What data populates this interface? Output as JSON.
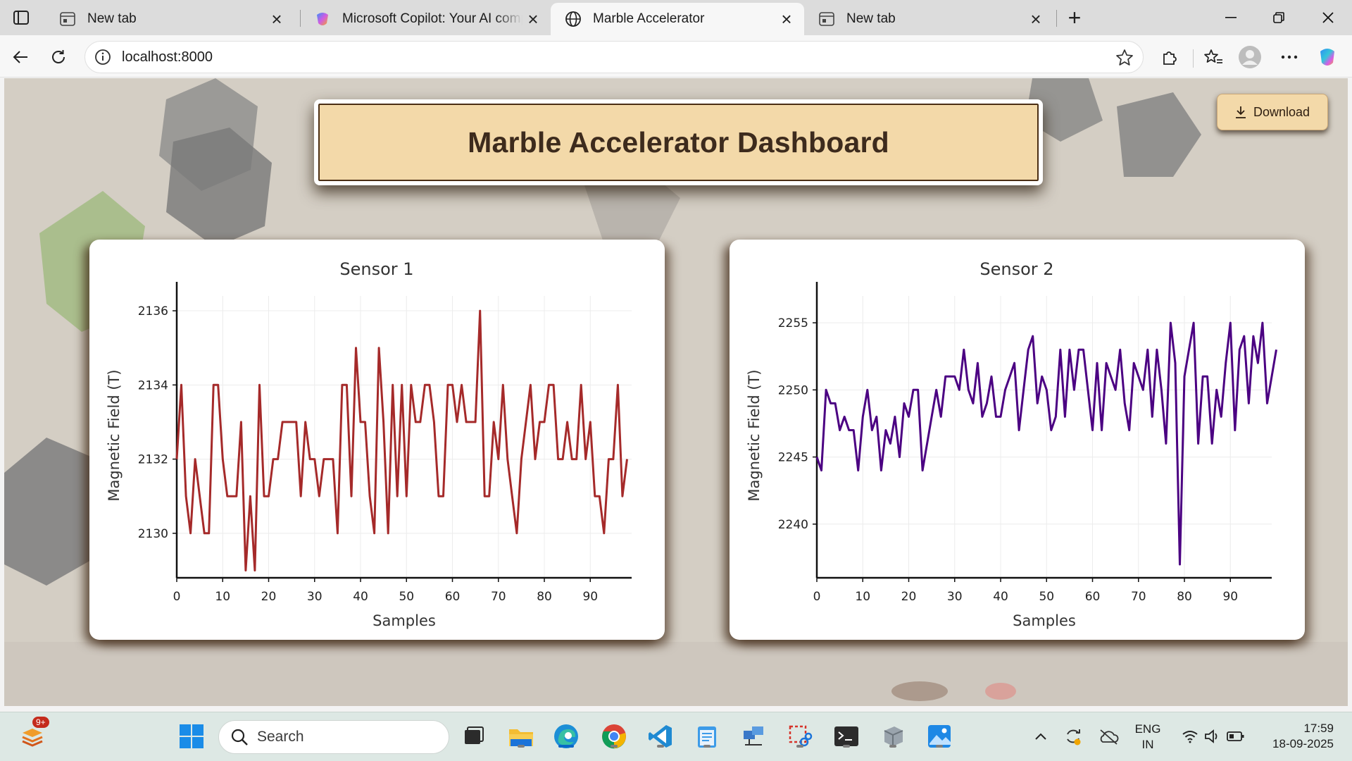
{
  "browser": {
    "tabs": [
      {
        "title": "New tab",
        "icon": "new-tab-page-icon",
        "active": false
      },
      {
        "title": "Microsoft Copilot: Your AI compar",
        "icon": "copilot-icon",
        "active": false
      },
      {
        "title": "Marble Accelerator",
        "icon": "globe-icon",
        "active": true
      },
      {
        "title": "New tab",
        "icon": "new-tab-page-icon",
        "active": false
      }
    ],
    "address": "localhost:8000"
  },
  "page": {
    "title": "Marble Accelerator Dashboard",
    "download_label": "Download"
  },
  "chart_data": [
    {
      "type": "line",
      "title": "Sensor 1",
      "xlabel": "Samples",
      "ylabel": "Magnetic Field (T)",
      "xlim": [
        0,
        99
      ],
      "ylim": [
        2128.8,
        2136.4
      ],
      "xticks": [
        0,
        10,
        20,
        30,
        40,
        50,
        60,
        70,
        80,
        90
      ],
      "yticks": [
        2130,
        2132,
        2134,
        2136
      ],
      "color": "#a52a2a",
      "values": [
        2132,
        2134,
        2131,
        2130,
        2132,
        2131,
        2130,
        2130,
        2134,
        2134,
        2132,
        2131,
        2131,
        2131,
        2133,
        2129,
        2131,
        2129,
        2134,
        2131,
        2131,
        2132,
        2132,
        2133,
        2133,
        2133,
        2133,
        2131,
        2133,
        2132,
        2132,
        2131,
        2132,
        2132,
        2132,
        2130,
        2134,
        2134,
        2131,
        2135,
        2133,
        2133,
        2131,
        2130,
        2135,
        2133,
        2130,
        2134,
        2131,
        2134,
        2131,
        2134,
        2133,
        2133,
        2134,
        2134,
        2133,
        2131,
        2131,
        2134,
        2134,
        2133,
        2134,
        2133,
        2133,
        2133,
        2136,
        2131,
        2131,
        2133,
        2132,
        2134,
        2132,
        2131,
        2130,
        2132,
        2133,
        2134,
        2132,
        2133,
        2133,
        2134,
        2134,
        2132,
        2132,
        2133,
        2132,
        2132,
        2134,
        2132,
        2133,
        2131,
        2131,
        2130,
        2132,
        2132,
        2134,
        2131,
        2132
      ]
    },
    {
      "type": "line",
      "title": "Sensor 2",
      "xlabel": "Samples",
      "ylabel": "Magnetic Field (T)",
      "xlim": [
        0,
        99
      ],
      "ylim": [
        2236,
        2257
      ],
      "xticks": [
        0,
        10,
        20,
        30,
        40,
        50,
        60,
        70,
        80,
        90
      ],
      "yticks": [
        2240,
        2245,
        2250,
        2255
      ],
      "color": "#4b0082",
      "values": [
        2245,
        2244,
        2250,
        2249,
        2249,
        2247,
        2248,
        2247,
        2247,
        2244,
        2248,
        2250,
        2247,
        2248,
        2244,
        2247,
        2246,
        2248,
        2245,
        2249,
        2248,
        2250,
        2250,
        2244,
        2246,
        2248,
        2250,
        2248,
        2251,
        2251,
        2251,
        2250,
        2253,
        2250,
        2249,
        2252,
        2248,
        2249,
        2251,
        2248,
        2248,
        2250,
        2251,
        2252,
        2247,
        2250,
        2253,
        2254,
        2249,
        2251,
        2250,
        2247,
        2248,
        2253,
        2248,
        2253,
        2250,
        2253,
        2253,
        2250,
        2247,
        2252,
        2247,
        2252,
        2251,
        2250,
        2253,
        2249,
        2247,
        2252,
        2251,
        2250,
        2253,
        2248,
        2253,
        2250,
        2246,
        2255,
        2252,
        2237,
        2251,
        2253,
        2255,
        2246,
        2251,
        2251,
        2246,
        2250,
        2248,
        2252,
        2255,
        2247,
        2253,
        2254,
        2249,
        2254,
        2252,
        2255,
        2249,
        2251,
        2253
      ]
    }
  ],
  "taskbar": {
    "search_placeholder": "Search",
    "notification_badge": "9+",
    "language": "ENG",
    "region": "IN",
    "time": "17:59",
    "date": "18-09-2025"
  }
}
